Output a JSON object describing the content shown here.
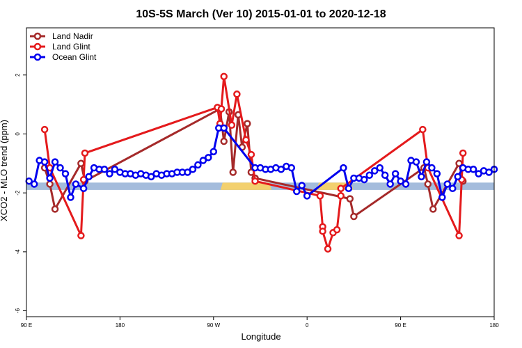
{
  "chart_data": {
    "type": "line",
    "title": "10S-5S March (Ver 10)   2015-01-01 to 2020-12-18",
    "xlabel": "Longitude",
    "ylabel": "XCO2 - MLO trend (ppm)",
    "xlim": [
      90,
      450
    ],
    "ylim": [
      -6.2,
      3.6
    ],
    "x_ticks": [
      {
        "value": 90,
        "label": "90 E"
      },
      {
        "value": 162,
        "label": "180"
      },
      {
        "value": 234,
        "label": "90 W"
      },
      {
        "value": 306,
        "label": "0"
      },
      {
        "value": 378,
        "label": "90 E"
      },
      {
        "value": 450,
        "label": "180"
      }
    ],
    "y_ticks": [
      {
        "value": 2,
        "label": "2"
      },
      {
        "value": 0,
        "label": "0"
      },
      {
        "value": -2,
        "label": "-2"
      },
      {
        "value": -4,
        "label": "-4"
      },
      {
        "value": -6,
        "label": "-6"
      }
    ],
    "grid": false,
    "legend_position": "top-left",
    "land_band": {
      "y_range": [
        -1.9,
        -1.65
      ],
      "ocean_color": "#a4bcdc",
      "land_color": "#f3d06e",
      "land_segments": [
        [
          241,
          277
        ],
        [
          315,
          340
        ]
      ]
    },
    "series": [
      {
        "name": "Land Nadir",
        "color": "#a52a2a",
        "points": [
          [
            104,
            -1.15
          ],
          [
            108,
            -1.7
          ],
          [
            112,
            -2.55
          ],
          [
            132,
            -1.0
          ],
          [
            135,
            -1.6
          ],
          [
            239,
            0.85
          ],
          [
            242,
            -0.25
          ],
          [
            246,
            0.75
          ],
          [
            249,
            -1.3
          ],
          [
            253,
            0.65
          ],
          [
            256,
            -0.45
          ],
          [
            260,
            0.35
          ],
          [
            263,
            -1.3
          ],
          [
            266,
            -1.5
          ],
          [
            339,
            -2.2
          ],
          [
            342,
            -2.8
          ],
          [
            396,
            -1.15
          ],
          [
            399,
            -1.7
          ],
          [
            403,
            -2.55
          ],
          [
            423,
            -1.0
          ],
          [
            426,
            -1.6
          ]
        ]
      },
      {
        "name": "Land Glint",
        "color": "#e41a1c",
        "points": [
          [
            104,
            0.15
          ],
          [
            108,
            -1.15
          ],
          [
            132,
            -3.45
          ],
          [
            134,
            -1.55
          ],
          [
            135,
            -0.65
          ],
          [
            237,
            0.9
          ],
          [
            239,
            0.35
          ],
          [
            240,
            0.85
          ],
          [
            242,
            1.95
          ],
          [
            248,
            0.3
          ],
          [
            252,
            1.35
          ],
          [
            259,
            -0.2
          ],
          [
            263,
            -0.7
          ],
          [
            266,
            -1.6
          ],
          [
            316,
            -2.1
          ],
          [
            318,
            -3.15
          ],
          [
            318,
            -3.3
          ],
          [
            322,
            -3.9
          ],
          [
            326,
            -3.35
          ],
          [
            329,
            -3.25
          ],
          [
            332,
            -2.1
          ],
          [
            332,
            -1.85
          ],
          [
            395,
            0.15
          ],
          [
            399,
            -1.15
          ],
          [
            423,
            -3.45
          ],
          [
            425,
            -1.55
          ],
          [
            426,
            -0.65
          ]
        ]
      },
      {
        "name": "Ocean Glint",
        "color": "#0000ee",
        "points": [
          [
            92,
            -1.6
          ],
          [
            96,
            -1.7
          ],
          [
            100,
            -0.9
          ],
          [
            104,
            -0.95
          ],
          [
            108,
            -1.5
          ],
          [
            112,
            -0.95
          ],
          [
            116,
            -1.15
          ],
          [
            120,
            -1.35
          ],
          [
            124,
            -2.15
          ],
          [
            128,
            -1.7
          ],
          [
            134,
            -1.85
          ],
          [
            138,
            -1.45
          ],
          [
            142,
            -1.15
          ],
          [
            146,
            -1.2
          ],
          [
            150,
            -1.2
          ],
          [
            154,
            -1.35
          ],
          [
            158,
            -1.2
          ],
          [
            162,
            -1.3
          ],
          [
            166,
            -1.35
          ],
          [
            170,
            -1.35
          ],
          [
            174,
            -1.4
          ],
          [
            178,
            -1.35
          ],
          [
            182,
            -1.4
          ],
          [
            186,
            -1.45
          ],
          [
            190,
            -1.35
          ],
          [
            194,
            -1.4
          ],
          [
            198,
            -1.35
          ],
          [
            202,
            -1.35
          ],
          [
            206,
            -1.3
          ],
          [
            210,
            -1.3
          ],
          [
            214,
            -1.3
          ],
          [
            218,
            -1.2
          ],
          [
            222,
            -1.05
          ],
          [
            226,
            -0.9
          ],
          [
            230,
            -0.8
          ],
          [
            234,
            -0.6
          ],
          [
            238,
            0.2
          ],
          [
            242,
            0.2
          ],
          [
            266,
            -1.15
          ],
          [
            270,
            -1.15
          ],
          [
            274,
            -1.2
          ],
          [
            278,
            -1.2
          ],
          [
            282,
            -1.15
          ],
          [
            286,
            -1.2
          ],
          [
            290,
            -1.1
          ],
          [
            294,
            -1.15
          ],
          [
            298,
            -1.95
          ],
          [
            302,
            -1.75
          ],
          [
            306,
            -2.1
          ],
          [
            334,
            -1.15
          ],
          [
            338,
            -1.85
          ],
          [
            342,
            -1.5
          ],
          [
            346,
            -1.5
          ],
          [
            350,
            -1.55
          ],
          [
            354,
            -1.4
          ],
          [
            358,
            -1.25
          ],
          [
            362,
            -1.15
          ],
          [
            366,
            -1.4
          ],
          [
            370,
            -1.7
          ],
          [
            374,
            -1.35
          ],
          [
            378,
            -1.6
          ],
          [
            382,
            -1.7
          ],
          [
            386,
            -0.9
          ],
          [
            390,
            -0.95
          ],
          [
            394,
            -1.45
          ],
          [
            398,
            -0.95
          ],
          [
            402,
            -1.15
          ],
          [
            406,
            -1.35
          ],
          [
            410,
            -2.15
          ],
          [
            414,
            -1.7
          ],
          [
            418,
            -1.85
          ],
          [
            422,
            -1.45
          ],
          [
            426,
            -1.15
          ],
          [
            430,
            -1.2
          ],
          [
            434,
            -1.2
          ],
          [
            438,
            -1.35
          ],
          [
            442,
            -1.25
          ],
          [
            446,
            -1.3
          ],
          [
            450,
            -1.2
          ]
        ]
      }
    ]
  }
}
